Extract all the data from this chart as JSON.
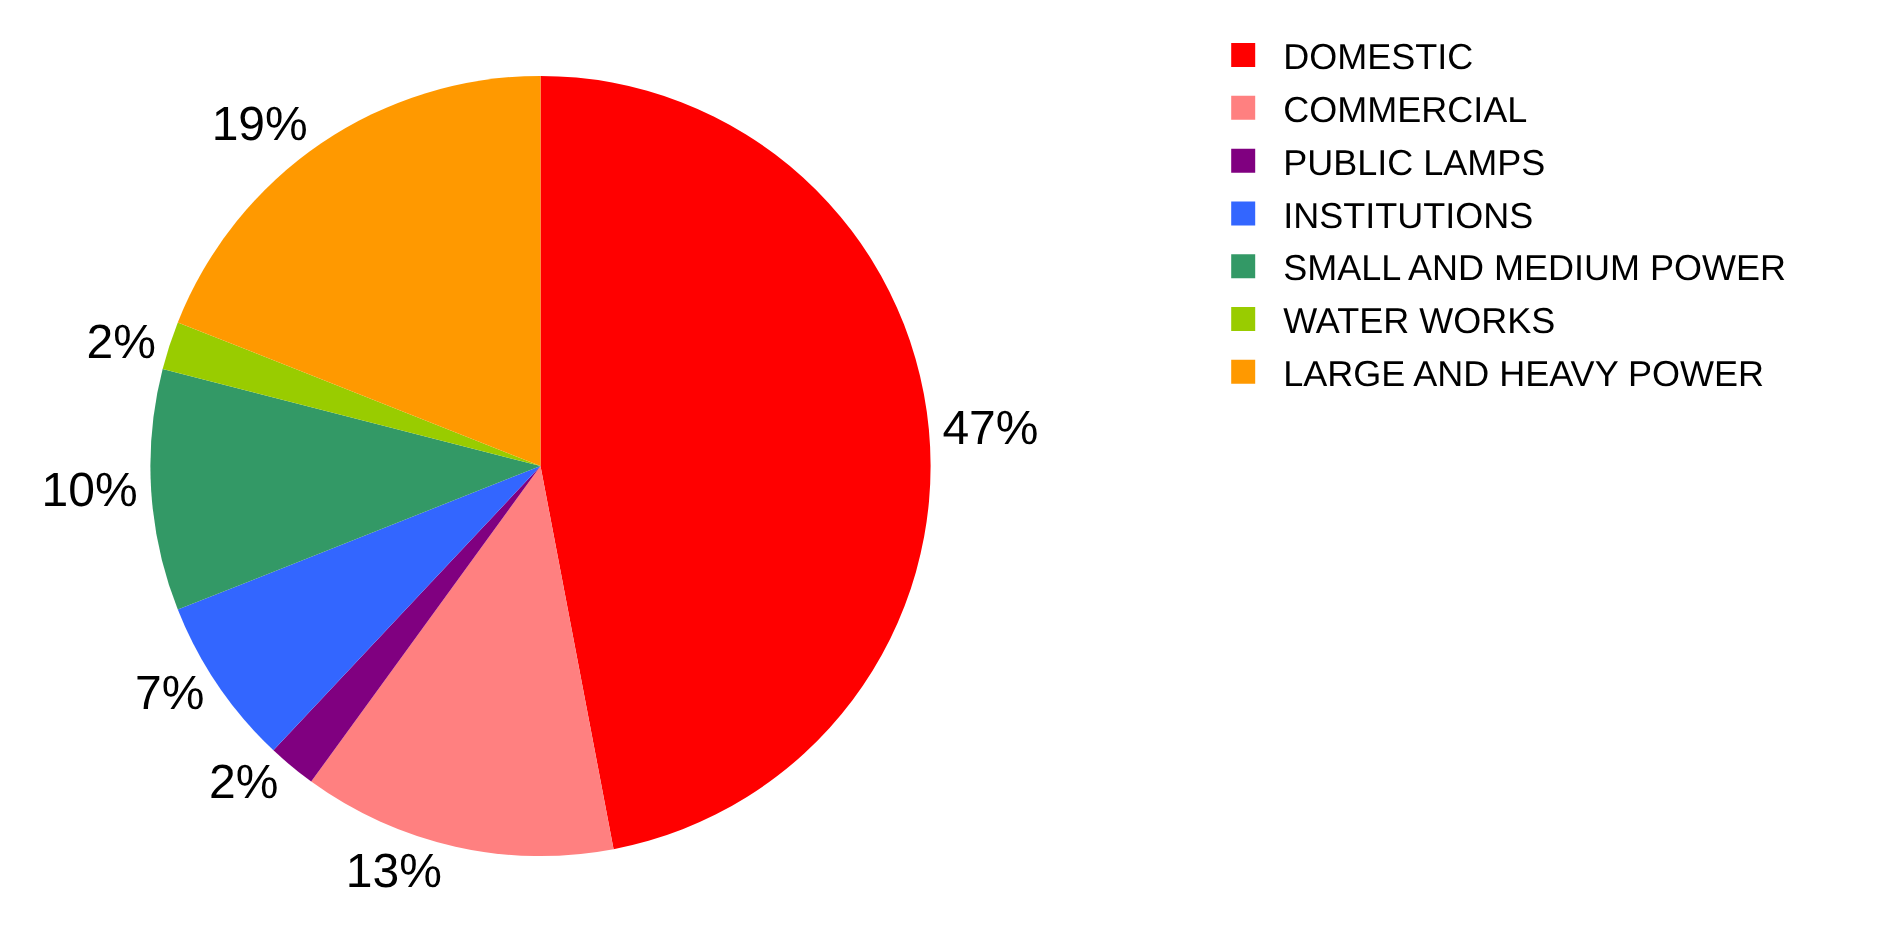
{
  "chart_data": {
    "type": "pie",
    "categories": [
      "DOMESTIC",
      "COMMERCIAL",
      "PUBLIC LAMPS",
      "INSTITUTIONS",
      "SMALL AND MEDIUM POWER",
      "WATER WORKS",
      "LARGE AND HEAVY POWER"
    ],
    "values": [
      47,
      13,
      2,
      7,
      10,
      2,
      19
    ],
    "value_labels": [
      "47%",
      "13%",
      "2%",
      "7%",
      "10%",
      "2%",
      "19%"
    ],
    "colors": [
      "#ff0000",
      "#ff8080",
      "#800080",
      "#3366ff",
      "#339966",
      "#99cc00",
      "#ff9900"
    ],
    "legend": "right"
  }
}
